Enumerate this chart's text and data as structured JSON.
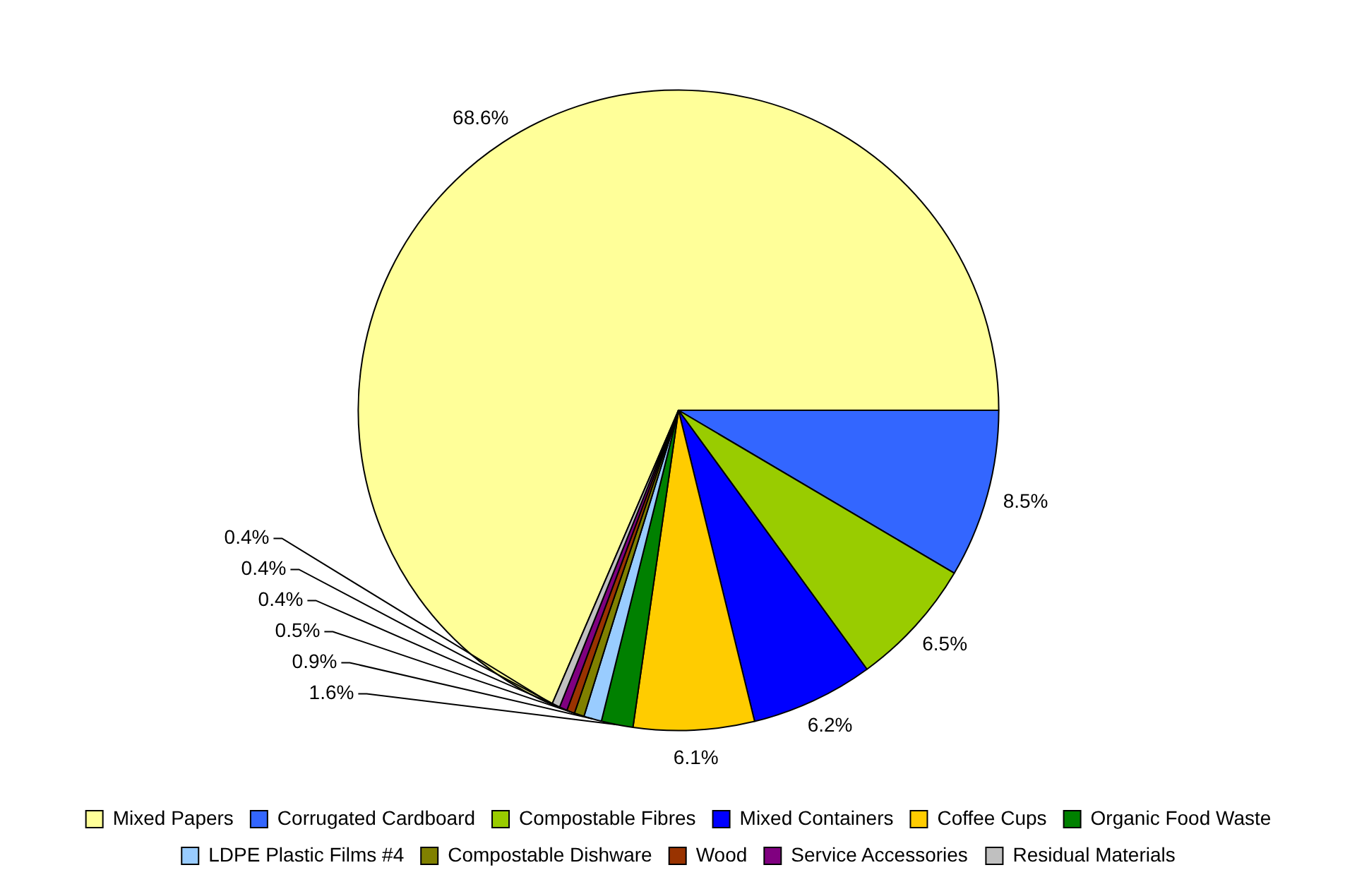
{
  "chart_data": {
    "type": "pie",
    "categories": [
      "Mixed Papers",
      "Corrugated Cardboard",
      "Compostable Fibres",
      "Mixed Containers",
      "Coffee Cups",
      "Organic Food Waste",
      "LDPE Plastic Films #4",
      "Compostable Dishware",
      "Wood",
      "Service Accessories",
      "Residual Materials"
    ],
    "values": [
      68.6,
      8.5,
      6.5,
      6.2,
      6.1,
      1.6,
      0.9,
      0.5,
      0.4,
      0.4,
      0.4
    ],
    "value_labels": [
      "68.6%",
      "8.5%",
      "6.5%",
      "6.2%",
      "6.1%",
      "1.6%",
      "0.9%",
      "0.5%",
      "0.4%",
      "0.4%",
      "0.4%"
    ],
    "colors": [
      "#ffff99",
      "#3366ff",
      "#99cc00",
      "#0000ff",
      "#ffcc00",
      "#008000",
      "#99ccff",
      "#808000",
      "#993300",
      "#800080",
      "#c0c0c0"
    ],
    "legend": "bottom"
  }
}
